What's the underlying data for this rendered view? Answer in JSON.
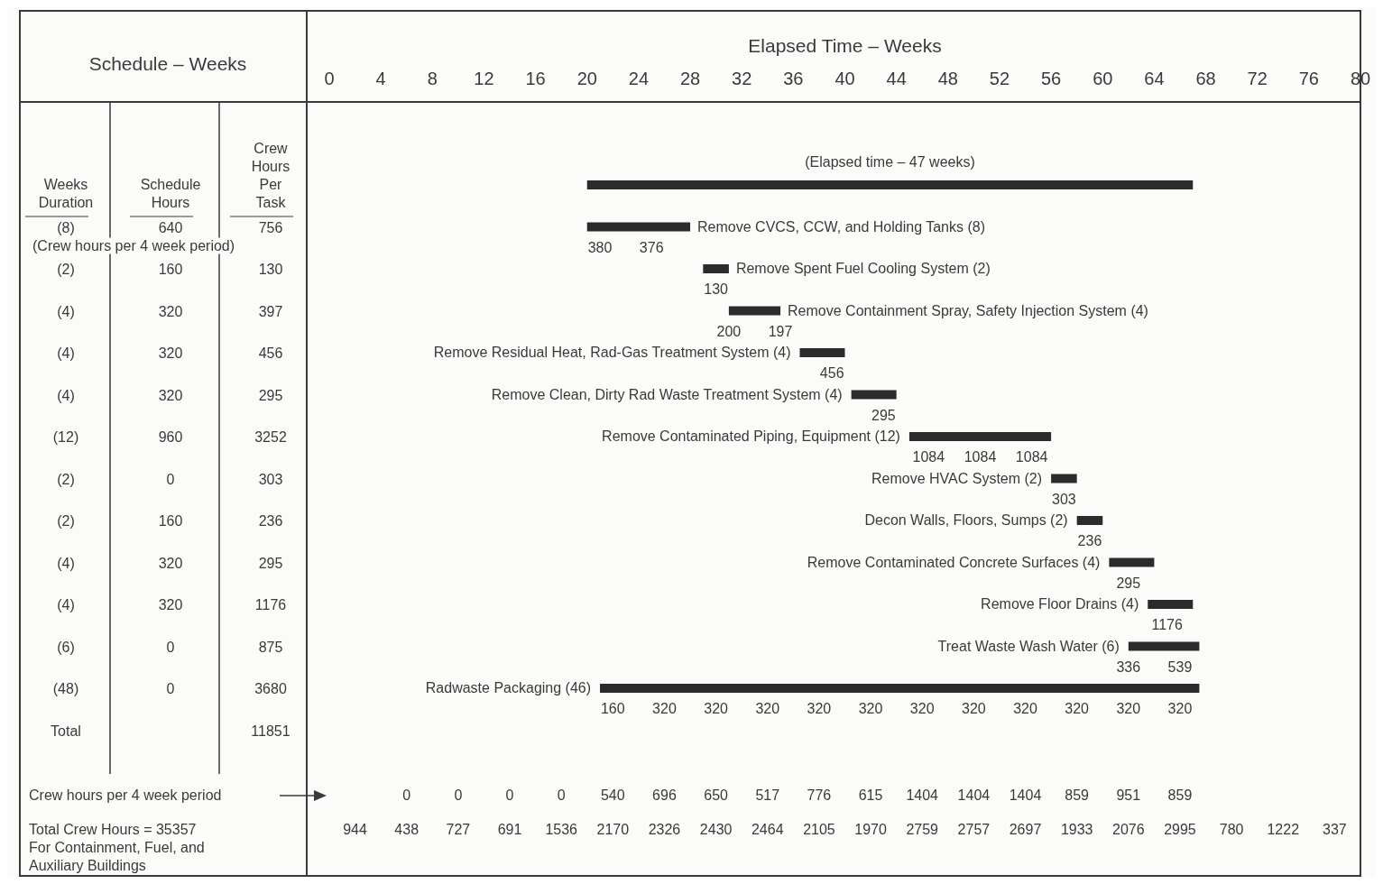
{
  "chart_data": [
    {
      "type": "other",
      "title": "Schedule – Weeks",
      "categories": [
        "Weeks Duration",
        "Schedule Hours",
        "Crew Hours Per Task"
      ],
      "cell_labels": [
        [
          "(8)",
          "640",
          "756"
        ],
        [
          "(2)",
          "160",
          "130"
        ],
        [
          "(4)",
          "320",
          "397"
        ],
        [
          "(4)",
          "320",
          "456"
        ],
        [
          "(4)",
          "320",
          "295"
        ],
        [
          "(12)",
          "960",
          "3252"
        ],
        [
          "(2)",
          "0",
          "303"
        ],
        [
          "(2)",
          "160",
          "236"
        ],
        [
          "(4)",
          "320",
          "295"
        ],
        [
          "(4)",
          "320",
          "1176"
        ],
        [
          "(6)",
          "0",
          "875"
        ],
        [
          "(48)",
          "0",
          "3680"
        ],
        [
          "Total",
          null,
          "11851"
        ]
      ],
      "annotations": [
        "(Crew hours per 4 week period)"
      ]
    },
    {
      "type": "bar",
      "orientation": "horizontal",
      "xlabel": "Elapsed Time – Weeks",
      "xlim": [
        0,
        80
      ],
      "xticks": [
        0,
        4,
        8,
        12,
        16,
        20,
        24,
        28,
        32,
        36,
        40,
        44,
        48,
        52,
        56,
        60,
        64,
        68,
        72,
        76,
        80
      ],
      "color": "#2b2b2b",
      "categories": [
        null,
        "Remove CVCS, CCW, and Holding Tanks (8)",
        "Remove Spent Fuel Cooling System (2)",
        "Remove Containment Spray, Safety Injection System (4)",
        "Remove Residual Heat, Rad-Gas Treatment System (4)",
        "Remove Clean, Dirty Rad Waste Treatment System (4)",
        "Remove Contaminated Piping, Equipment (12)",
        "Remove HVAC System (2)",
        "Decon Walls, Floors, Sumps (2)",
        "Remove Contaminated Concrete Surfaces (4)",
        "Remove Floor Drains (4)",
        "Treat Waste Wash Water (6)",
        "Radwaste Packaging (46)"
      ],
      "base": [
        20,
        20,
        29,
        31,
        36.5,
        40.5,
        45,
        56,
        58,
        60.5,
        63.5,
        62,
        21
      ],
      "values": [
        47,
        8,
        2,
        4,
        3.5,
        3.5,
        11,
        2,
        2,
        3.5,
        3.5,
        5.5,
        46.5
      ],
      "annotations": [
        "(Elapsed time – 47 weeks)",
        {
          "text": "380",
          "x": 21,
          "y": "Remove CVCS, CCW, and Holding Tanks (8)"
        },
        {
          "text": "376",
          "x": 25,
          "y": "Remove CVCS, CCW, and Holding Tanks (8)"
        },
        {
          "text": "130",
          "x": 30,
          "y": "Remove Spent Fuel Cooling System (2)"
        },
        {
          "text": "200",
          "x": 31,
          "y": "Remove Containment Spray, Safety Injection System (4)"
        },
        {
          "text": "197",
          "x": 35,
          "y": "Remove Containment Spray, Safety Injection System (4)"
        },
        {
          "text": "456",
          "x": 39,
          "y": "Remove Residual Heat, Rad-Gas Treatment System (4)"
        },
        {
          "text": "295",
          "x": 43,
          "y": "Remove Clean, Dirty Rad Waste Treatment System (4)"
        },
        {
          "text": "1084",
          "x": 46.5,
          "y": "Remove Contaminated Piping, Equipment (12)"
        },
        {
          "text": "1084",
          "x": 50.5,
          "y": "Remove Contaminated Piping, Equipment (12)"
        },
        {
          "text": "1084",
          "x": 54.5,
          "y": "Remove Contaminated Piping, Equipment (12)"
        },
        {
          "text": "303",
          "x": 57,
          "y": "Remove HVAC System (2)"
        },
        {
          "text": "236",
          "x": 59,
          "y": "Decon Walls, Floors, Sumps (2)"
        },
        {
          "text": "295",
          "x": 62,
          "y": "Remove Contaminated Concrete Surfaces (4)"
        },
        {
          "text": "1176",
          "x": 65,
          "y": "Remove Floor Drains (4)"
        },
        {
          "text": "336",
          "x": 62,
          "y": "Treat Waste Wash Water (6)"
        },
        {
          "text": "539",
          "x": 66,
          "y": "Treat Waste Wash Water (6)"
        },
        {
          "text": "160",
          "x": 22,
          "y": "Radwaste Packaging (46)"
        },
        {
          "text": "320",
          "x": 26,
          "y": "Radwaste Packaging (46)"
        },
        {
          "text": "320",
          "x": 30,
          "y": "Radwaste Packaging (46)"
        },
        {
          "text": "320",
          "x": 34,
          "y": "Radwaste Packaging (46)"
        },
        {
          "text": "320",
          "x": 38,
          "y": "Radwaste Packaging (46)"
        },
        {
          "text": "320",
          "x": 42,
          "y": "Radwaste Packaging (46)"
        },
        {
          "text": "320",
          "x": 46,
          "y": "Radwaste Packaging (46)"
        },
        {
          "text": "320",
          "x": 50,
          "y": "Radwaste Packaging (46)"
        },
        {
          "text": "320",
          "x": 54,
          "y": "Radwaste Packaging (46)"
        },
        {
          "text": "320",
          "x": 58,
          "y": "Radwaste Packaging (46)"
        },
        {
          "text": "320",
          "x": 62,
          "y": "Radwaste Packaging (46)"
        },
        {
          "text": "320",
          "x": 66,
          "y": "Radwaste Packaging (46)"
        }
      ]
    },
    {
      "type": "other",
      "y_categories": [
        "Crew hours per 4 week period",
        "Total Crew Hours = 35357 For Containment, Fuel, and Auxiliary Buildings"
      ],
      "cell_labels": [
        [
          null,
          "0",
          "0",
          "0",
          "0",
          "540",
          "696",
          "650",
          "517",
          "776",
          "615",
          "1404",
          "1404",
          "1404",
          "859",
          "951",
          "859",
          null,
          null,
          null
        ],
        [
          "944",
          "438",
          "727",
          "691",
          "1536",
          "2170",
          "2326",
          "2430",
          "2464",
          "2105",
          "1970",
          "2759",
          "2757",
          "2697",
          "1933",
          "2076",
          "2995",
          "780",
          "1222",
          "337"
        ]
      ]
    }
  ]
}
